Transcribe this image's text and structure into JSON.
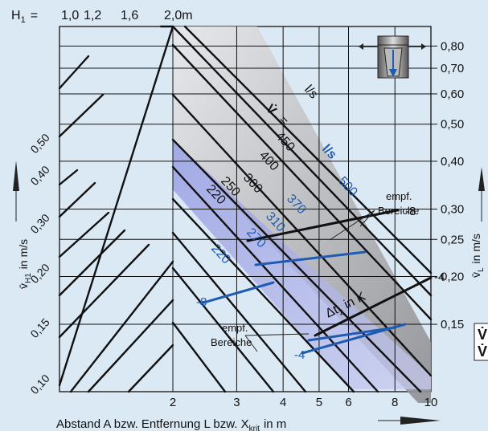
{
  "chart_data": {
    "type": "line",
    "x_axis": {
      "label": "Abstand A bzw. Entfernung L bzw. X",
      "label_sub": "krit",
      "label_unit": "in m",
      "scale": "log",
      "ticks": [
        "2",
        "3",
        "4",
        "5",
        "6",
        "8",
        "10"
      ]
    },
    "left_axis": {
      "label": "v̄",
      "label_sub": "H1",
      "label_unit": "in m/s",
      "ticks": [
        "0,10",
        "0,15",
        "0,20",
        "0,30",
        "0,40",
        "0,50"
      ]
    },
    "right_axis": {
      "label": "v̄",
      "label_sub": "L",
      "label_unit": "in m/s",
      "scale": "log",
      "ticks": [
        "0,15",
        "0,20",
        "0,25",
        "0,30",
        "0,40",
        "0,50",
        "0,60",
        "0,70",
        "0,80"
      ]
    },
    "h1_axis": {
      "label": "H",
      "label_sub": "1",
      "eq": "=",
      "ticks": [
        "1,0",
        "1,2",
        "1,6",
        "2,0m"
      ]
    },
    "flow_header": {
      "v_symbol": "V̇",
      "eq": "=",
      "unit": "l/s"
    },
    "flow_black": [
      "450",
      "400",
      "300",
      "250",
      "220"
    ],
    "flow_blue": [
      "500",
      "370",
      "310",
      "270",
      "220"
    ],
    "flow_blue_unit": "l/s",
    "delta_t": {
      "label": "Δt",
      "sub": "z",
      "unit": "in K",
      "values": [
        "-8",
        "-4",
        "-8",
        "-4"
      ]
    },
    "annotations": [
      "empf.",
      "Bereiche",
      "empf.",
      "Bereiche"
    ],
    "right_cut_text": [
      "V̇",
      "V̇"
    ],
    "colors": {
      "background": "#dbe9f5",
      "grid": "#111111",
      "blue": "#1f5bb0",
      "gray_band": "#a9a9ad",
      "blue_band": "#a5a8da"
    }
  }
}
